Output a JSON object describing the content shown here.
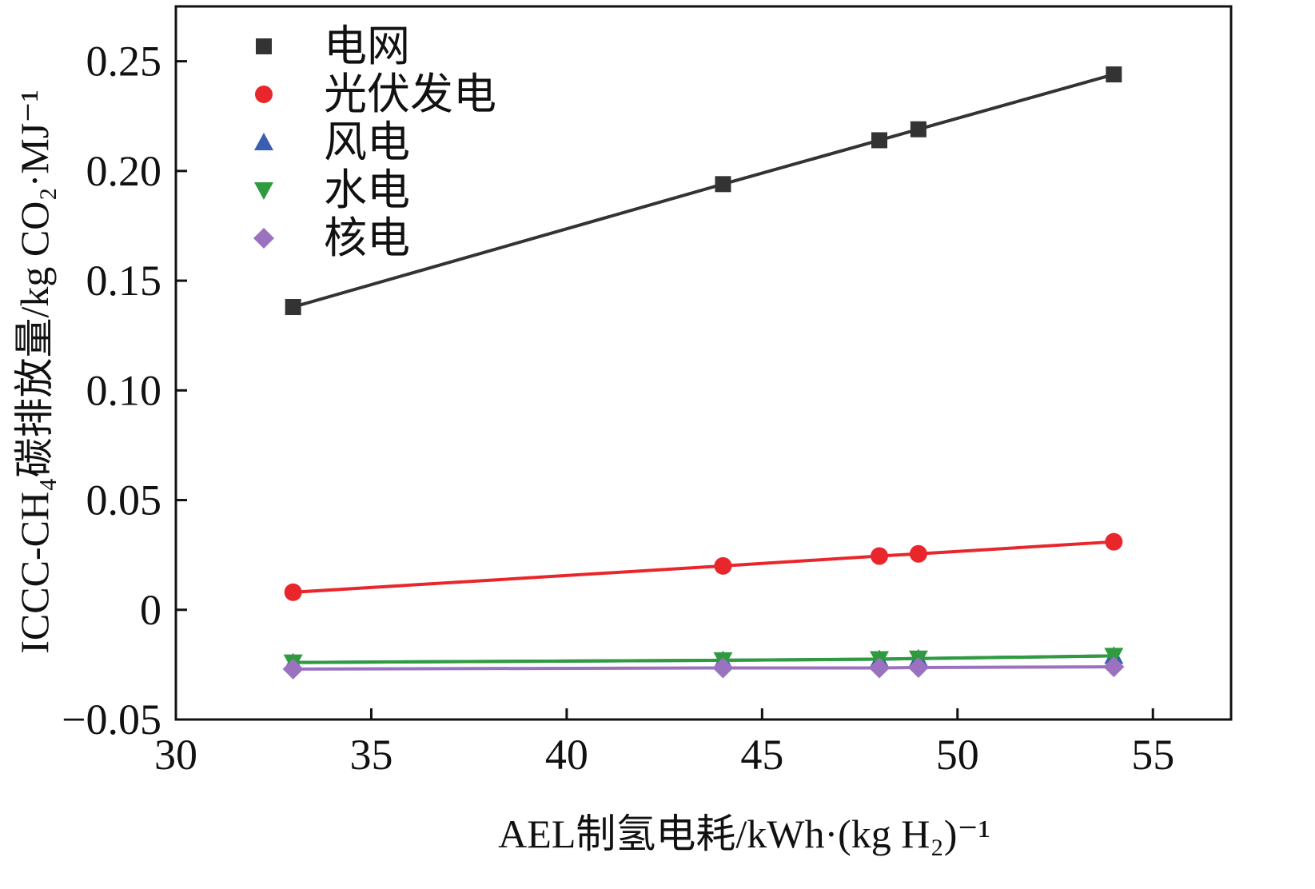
{
  "chart_data": {
    "type": "line",
    "xlabel": "AEL制氢电耗/kWh·(kg H₂)⁻¹",
    "ylabel": "ICCC-CH₄碳排放量/kg CO₂·MJ⁻¹",
    "xlim": [
      30,
      57
    ],
    "ylim": [
      -0.05,
      0.275
    ],
    "x_ticks": [
      30,
      35,
      40,
      45,
      50,
      55
    ],
    "x_tick_labels": [
      "30",
      "35",
      "40",
      "45",
      "50",
      "55"
    ],
    "y_ticks": [
      -0.05,
      0,
      0.05,
      0.1,
      0.15,
      0.2,
      0.25
    ],
    "y_tick_labels": [
      "−0.05",
      "0",
      "0.05",
      "0.10",
      "0.15",
      "0.20",
      "0.25"
    ],
    "grid": false,
    "legend_position": "top-left",
    "x": [
      33,
      44,
      48,
      49,
      54
    ],
    "series": [
      {
        "name": "电网",
        "marker": "square",
        "color": "#333333",
        "values": [
          0.138,
          0.194,
          0.214,
          0.219,
          0.244
        ]
      },
      {
        "name": "光伏发电",
        "marker": "circle",
        "color": "#e8262b",
        "values": [
          0.008,
          0.02,
          0.0245,
          0.0255,
          0.031
        ]
      },
      {
        "name": "风电",
        "marker": "triangle-up",
        "color": "#3a5fb0",
        "values": [
          -0.024,
          -0.023,
          -0.0225,
          -0.0222,
          -0.021
        ]
      },
      {
        "name": "水电",
        "marker": "triangle-down",
        "color": "#2e9b3e",
        "values": [
          -0.024,
          -0.023,
          -0.0225,
          -0.0222,
          -0.021
        ]
      },
      {
        "name": "核电",
        "marker": "diamond",
        "color": "#9b72bf",
        "values": [
          -0.027,
          -0.0265,
          -0.0265,
          -0.0263,
          -0.026
        ]
      }
    ]
  }
}
